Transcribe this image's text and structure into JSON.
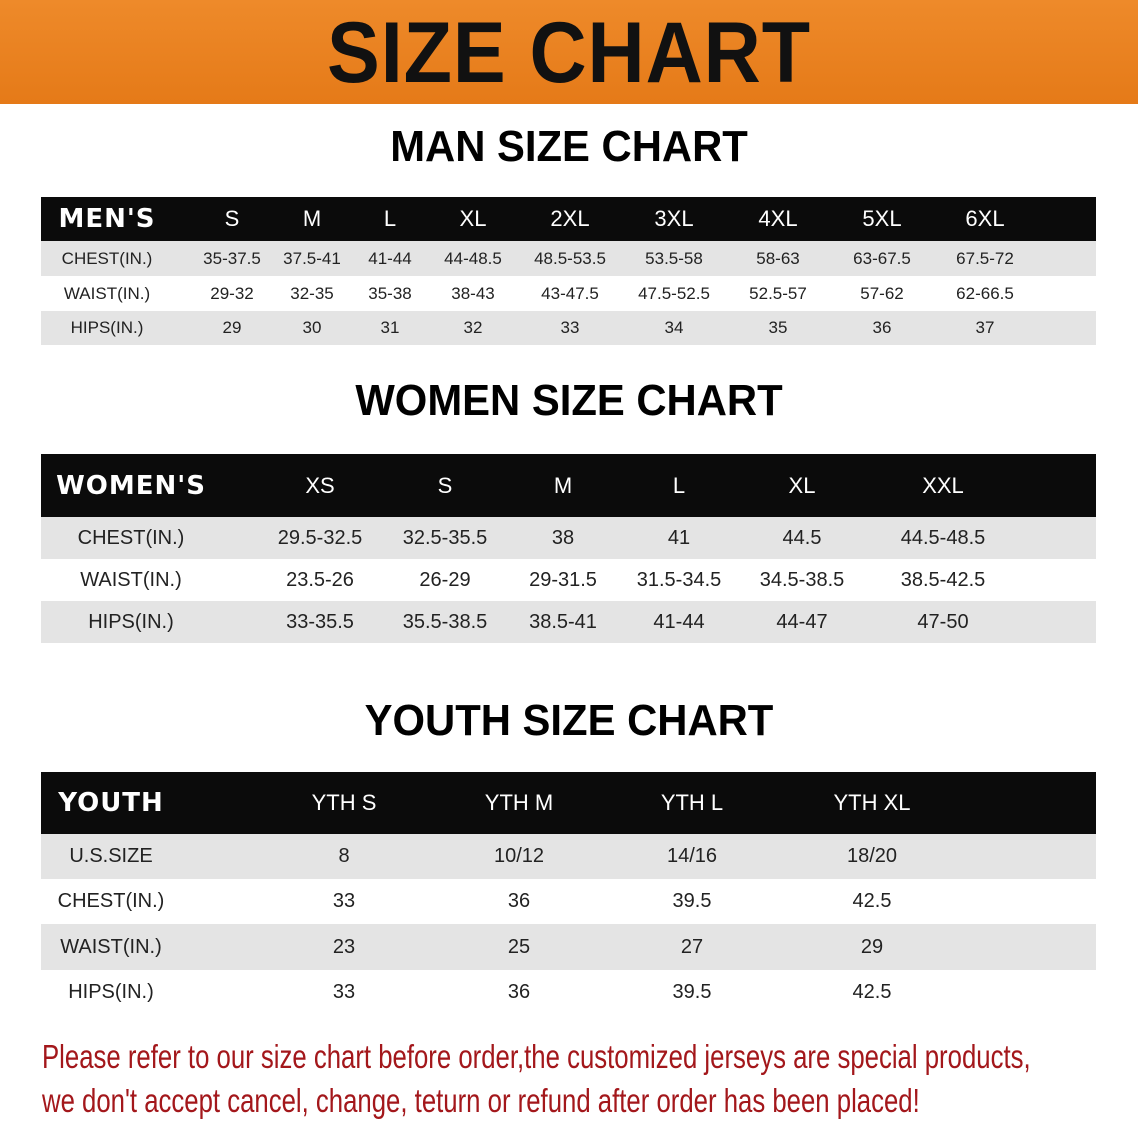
{
  "banner_title": "SIZE CHART",
  "colors": {
    "banner": "#e97f1e",
    "header_row": "#0b0b0b",
    "stripe": "#e4e4e4",
    "note": "#a3171b"
  },
  "men": {
    "title": "MAN SIZE CHART",
    "header": [
      "MEN'S",
      "S",
      "M",
      "L",
      "XL",
      "2XL",
      "3XL",
      "4XL",
      "5XL",
      "6XL"
    ],
    "rows": [
      [
        "CHEST(IN.)",
        "35-37.5",
        "37.5-41",
        "41-44",
        "44-48.5",
        "48.5-53.5",
        "53.5-58",
        "58-63",
        "63-67.5",
        "67.5-72"
      ],
      [
        "WAIST(IN.)",
        "29-32",
        "32-35",
        "35-38",
        "38-43",
        "43-47.5",
        "47.5-52.5",
        "52.5-57",
        "57-62",
        "62-66.5"
      ],
      [
        "HIPS(IN.)",
        "29",
        "30",
        "31",
        "32",
        "33",
        "34",
        "35",
        "36",
        "37"
      ]
    ]
  },
  "women": {
    "title": "WOMEN SIZE CHART",
    "header": [
      "WOMEN'S",
      "XS",
      "S",
      "M",
      "L",
      "XL",
      "XXL"
    ],
    "rows": [
      [
        "CHEST(IN.)",
        "29.5-32.5",
        "32.5-35.5",
        "38",
        "41",
        "44.5",
        "44.5-48.5"
      ],
      [
        "WAIST(IN.)",
        "23.5-26",
        "26-29",
        "29-31.5",
        "31.5-34.5",
        "34.5-38.5",
        "38.5-42.5"
      ],
      [
        "HIPS(IN.)",
        "33-35.5",
        "35.5-38.5",
        "38.5-41",
        "41-44",
        "44-47",
        "47-50"
      ]
    ]
  },
  "youth": {
    "title": "YOUTH SIZE CHART",
    "header": [
      "YOUTH",
      "YTH S",
      "YTH M",
      "YTH L",
      "YTH XL"
    ],
    "rows": [
      [
        "U.S.SIZE",
        "8",
        "10/12",
        "14/16",
        "18/20"
      ],
      [
        "CHEST(IN.)",
        "33",
        "36",
        "39.5",
        "42.5"
      ],
      [
        "WAIST(IN.)",
        "23",
        "25",
        "27",
        "29"
      ],
      [
        "HIPS(IN.)",
        "33",
        "36",
        "39.5",
        "42.5"
      ]
    ]
  },
  "note": {
    "line1": "Please refer to our size chart before order,the customized jerseys are special products,",
    "line2": "we don't accept cancel, change, teturn or refund after order has been placed!"
  }
}
